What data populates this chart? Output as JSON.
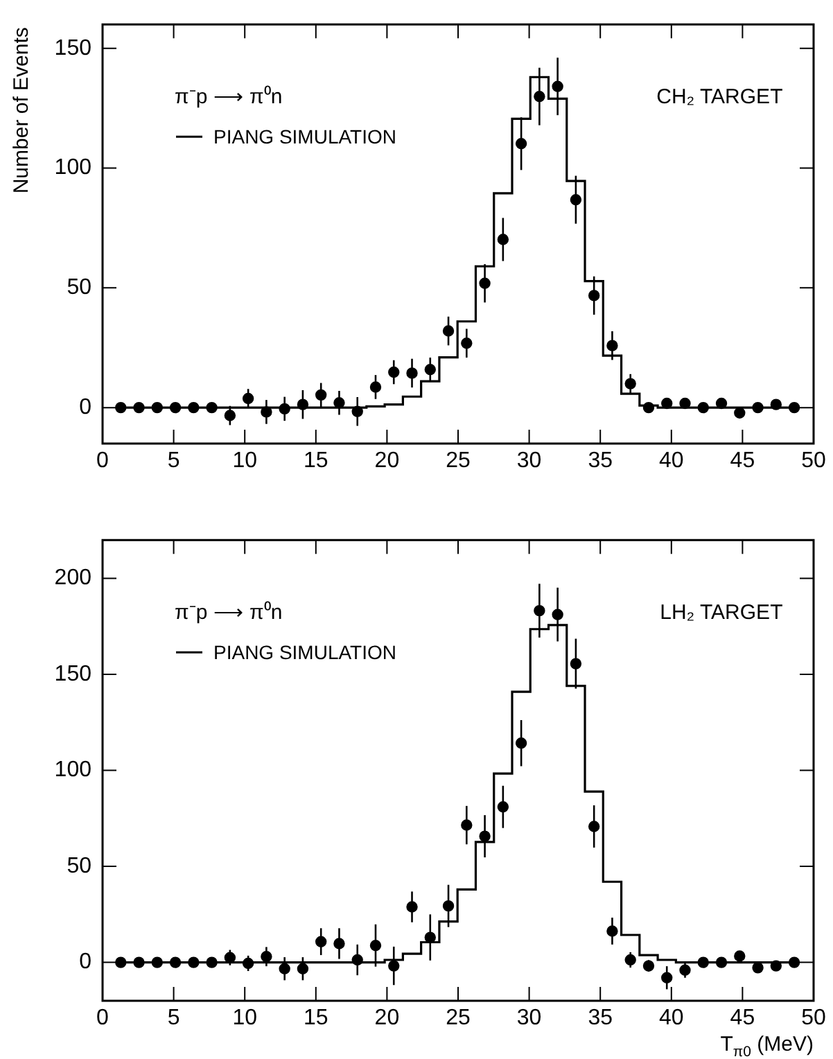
{
  "chart_data": [
    {
      "type": "scatter",
      "ylabel": "Number of Events",
      "annotations": [
        "π⁻p ⟶ π⁰n",
        "CH₂ TARGET"
      ],
      "legend": "top left",
      "grid": false,
      "x": [
        1.28,
        2.56,
        3.84,
        5.12,
        6.4,
        7.68,
        8.96,
        10.24,
        11.52,
        12.8,
        14.08,
        15.36,
        16.64,
        17.92,
        19.2,
        20.48,
        21.76,
        23.04,
        24.32,
        25.6,
        26.88,
        28.16,
        29.44,
        30.72,
        32.0,
        33.28,
        34.56,
        35.84,
        37.12,
        38.4,
        39.68,
        40.96,
        42.24,
        43.52,
        44.8,
        46.08,
        47.36,
        48.64
      ],
      "xlim": [
        0,
        50
      ],
      "xticks": [
        0,
        5,
        10,
        15,
        20,
        25,
        30,
        35,
        40,
        45,
        50
      ],
      "ylim": [
        -15,
        160
      ],
      "yticks": [
        0,
        50,
        100,
        150
      ],
      "series": [
        {
          "name": "PIANG SIMULATION",
          "type": "step",
          "color": "#000000",
          "values": [
            0,
            0,
            0,
            0,
            0,
            0,
            0,
            0,
            0,
            0,
            0,
            0,
            0,
            0,
            0.5,
            1.3,
            4.6,
            11,
            21,
            36,
            59,
            89.5,
            120.6,
            138,
            129,
            94.6,
            52.8,
            21.7,
            5.8,
            0.9,
            0,
            0,
            0,
            0,
            0,
            0,
            0,
            0
          ]
        },
        {
          "color": "#000000",
          "marker": "circle",
          "values": [
            0,
            0,
            0,
            0,
            0,
            0,
            -3.3,
            3.8,
            -1.8,
            -0.5,
            1.3,
            5.3,
            2,
            -1.6,
            8.6,
            14.8,
            14.4,
            15.9,
            32,
            26.9,
            51.9,
            70.2,
            110.2,
            129.9,
            134.1,
            86.8,
            46.8,
            25.9,
            10,
            0,
            1.8,
            1.8,
            0,
            1.8,
            -2.2,
            0,
            1.3,
            0
          ],
          "errors": [
            null,
            null,
            null,
            null,
            null,
            null,
            4,
            4,
            5,
            5,
            6,
            5,
            5,
            6,
            5,
            5,
            6,
            5,
            6,
            6,
            8,
            9,
            11,
            12,
            12,
            10,
            8,
            6,
            4,
            2,
            null,
            null,
            null,
            null,
            null,
            null,
            null,
            null
          ]
        }
      ]
    },
    {
      "type": "scatter",
      "xlabel": "T$_{π0}$ (MeV)",
      "annotations": [
        "π⁻p ⟶ π⁰n",
        "LH₂ TARGET"
      ],
      "legend": "top left",
      "grid": false,
      "x": [
        1.28,
        2.56,
        3.84,
        5.12,
        6.4,
        7.68,
        8.96,
        10.24,
        11.52,
        12.8,
        14.08,
        15.36,
        16.64,
        17.92,
        19.2,
        20.48,
        21.76,
        23.04,
        24.32,
        25.6,
        26.88,
        28.16,
        29.44,
        30.72,
        32.0,
        33.28,
        34.56,
        35.84,
        37.12,
        38.4,
        39.68,
        40.96,
        42.24,
        43.52,
        44.8,
        46.08,
        47.36,
        48.64
      ],
      "xlim": [
        0,
        50
      ],
      "xticks": [
        0,
        5,
        10,
        15,
        20,
        25,
        30,
        35,
        40,
        45,
        50
      ],
      "ylim": [
        -20,
        220
      ],
      "yticks": [
        0,
        50,
        100,
        150,
        200
      ],
      "series": [
        {
          "name": "PIANG SIMULATION",
          "type": "step",
          "color": "#000000",
          "values": [
            0,
            0,
            0,
            0,
            0,
            0,
            0,
            0,
            0,
            0,
            0,
            0,
            0,
            0,
            0,
            1.3,
            4.5,
            10.5,
            21.3,
            38,
            62.7,
            98.4,
            141,
            173.6,
            175.7,
            144,
            89,
            42,
            14.3,
            3.8,
            1.3,
            0,
            0,
            0,
            0,
            0,
            0,
            0
          ]
        },
        {
          "color": "#000000",
          "marker": "circle",
          "values": [
            0,
            0,
            0,
            0,
            0,
            0,
            2.5,
            -0.5,
            3,
            -3.3,
            -3.3,
            10.8,
            9.8,
            1.3,
            8.8,
            -1.8,
            28.9,
            13,
            29.4,
            71.5,
            65.7,
            81,
            114.2,
            183.2,
            181.2,
            155.6,
            70.8,
            16.3,
            1.3,
            -1.8,
            -8,
            -4,
            0,
            0,
            3.3,
            -2.8,
            -1.8,
            0
          ],
          "errors": [
            null,
            null,
            null,
            null,
            null,
            null,
            4,
            4,
            5,
            6,
            6,
            7,
            8,
            8,
            11,
            10,
            8,
            12,
            11,
            10,
            11,
            11,
            12,
            14,
            14,
            13,
            11,
            7,
            4,
            3,
            6,
            4,
            null,
            null,
            null,
            null,
            null,
            null
          ]
        }
      ]
    }
  ]
}
